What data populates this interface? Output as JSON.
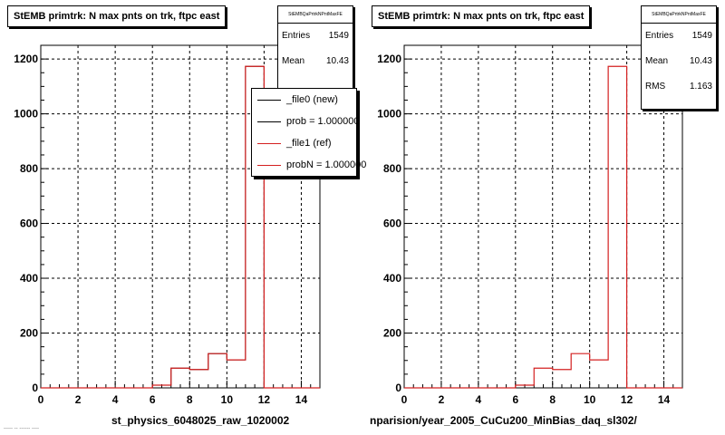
{
  "pads": [
    {
      "title": "StEMB primtrk: N max pnts on trk, ftpc east",
      "stats": {
        "name": "StEMBQaPrtrkNPntMaxFE",
        "rows": [
          {
            "label": "Entries",
            "value": "1549"
          },
          {
            "label": "Mean",
            "value": "10.43"
          }
        ]
      },
      "legend": [
        {
          "text": "_file0 (new)",
          "color": "#000000"
        },
        {
          "text": "prob = 1.000000",
          "color": "#000000"
        },
        {
          "text": "_file1 (ref)",
          "color": "#d42020"
        },
        {
          "text": "probN = 1.000000",
          "color": "#d42020"
        }
      ],
      "footer": "st_physics_6048025_raw_1020002",
      "note": "----- -- ------ ----"
    },
    {
      "title": "StEMB primtrk: N max pnts on trk, ftpc east",
      "stats": {
        "name": "StEMBQaPrtrkNPntMaxFE",
        "rows": [
          {
            "label": "Entries",
            "value": "1549"
          },
          {
            "label": "Mean",
            "value": "10.43"
          },
          {
            "label": "RMS",
            "value": "1.163"
          }
        ]
      },
      "legend": [],
      "footer": "nparision/year_2005_CuCu200_MinBias_daq_sl302/",
      "note": ""
    }
  ],
  "chart_data": [
    {
      "type": "histogram",
      "title": "StEMB primtrk: N max pnts on trk, ftpc east",
      "xlim": [
        0,
        15
      ],
      "ylim": [
        0,
        1250
      ],
      "xticks": [
        0,
        2,
        4,
        6,
        8,
        10,
        12,
        14
      ],
      "yticks": [
        0,
        200,
        400,
        600,
        800,
        1000,
        1200
      ],
      "grid": true,
      "bin_edges": [
        0,
        1,
        2,
        3,
        4,
        5,
        6,
        7,
        8,
        9,
        10,
        11,
        12,
        13,
        14,
        15
      ],
      "series": [
        {
          "name": "_file0 (new)",
          "color": "#000000",
          "values": [
            0,
            0,
            0,
            0,
            0,
            0,
            10,
            72,
            67,
            125,
            102,
            1173,
            0,
            0,
            0
          ]
        },
        {
          "name": "_file1 (ref)",
          "color": "#d42020",
          "values": [
            0,
            0,
            0,
            0,
            0,
            0,
            10,
            72,
            67,
            125,
            102,
            1173,
            0,
            0,
            0
          ]
        }
      ]
    },
    {
      "type": "histogram",
      "title": "StEMB primtrk: N max pnts on trk, ftpc east",
      "xlim": [
        0,
        15
      ],
      "ylim": [
        0,
        1250
      ],
      "xticks": [
        0,
        2,
        4,
        6,
        8,
        10,
        12,
        14
      ],
      "yticks": [
        0,
        200,
        400,
        600,
        800,
        1000,
        1200
      ],
      "grid": true,
      "bin_edges": [
        0,
        1,
        2,
        3,
        4,
        5,
        6,
        7,
        8,
        9,
        10,
        11,
        12,
        13,
        14,
        15
      ],
      "series": [
        {
          "color": "#d42020",
          "values": [
            0,
            0,
            0,
            0,
            0,
            0,
            10,
            72,
            67,
            125,
            102,
            1173,
            0,
            0,
            0
          ]
        }
      ]
    }
  ]
}
